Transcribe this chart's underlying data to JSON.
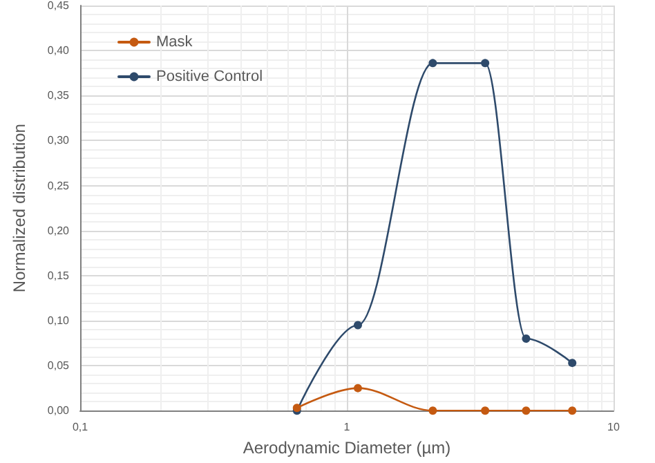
{
  "chart_data": {
    "type": "line",
    "xlabel": "Aerodynamic Diameter (µm)",
    "ylabel": "Normalized distribution",
    "x": [
      0.65,
      1.1,
      2.1,
      3.3,
      4.7,
      7.0
    ],
    "series": [
      {
        "name": "Mask",
        "color": "#c55a11",
        "values": [
          0.003,
          0.025,
          0,
          0,
          0,
          0
        ]
      },
      {
        "name": "Positive Control",
        "color": "#2e4a6b",
        "values": [
          0,
          0.095,
          0.386,
          0.386,
          0.08,
          0.053
        ]
      }
    ],
    "log": "x",
    "xlim": [
      0.1,
      10
    ],
    "xticks": [
      {
        "value": 0.1,
        "label": "0,1"
      },
      1,
      10
    ],
    "ylim": [
      0,
      0.45
    ],
    "yticks": [
      {
        "value": 0,
        "label": "0,00"
      },
      {
        "value": 0.05,
        "label": "0,05"
      },
      {
        "value": 0.1,
        "label": "0,10"
      },
      {
        "value": 0.15,
        "label": "0,15"
      },
      {
        "value": 0.2,
        "label": "0,20"
      },
      {
        "value": 0.25,
        "label": "0,25"
      },
      {
        "value": 0.3,
        "label": "0,30"
      },
      {
        "value": 0.35,
        "label": "0,35"
      },
      {
        "value": 0.4,
        "label": "0,40"
      },
      {
        "value": 0.45,
        "label": "0,45"
      }
    ],
    "grid": true,
    "legend": "top left",
    "marker": "circle",
    "line_style": "solid"
  }
}
